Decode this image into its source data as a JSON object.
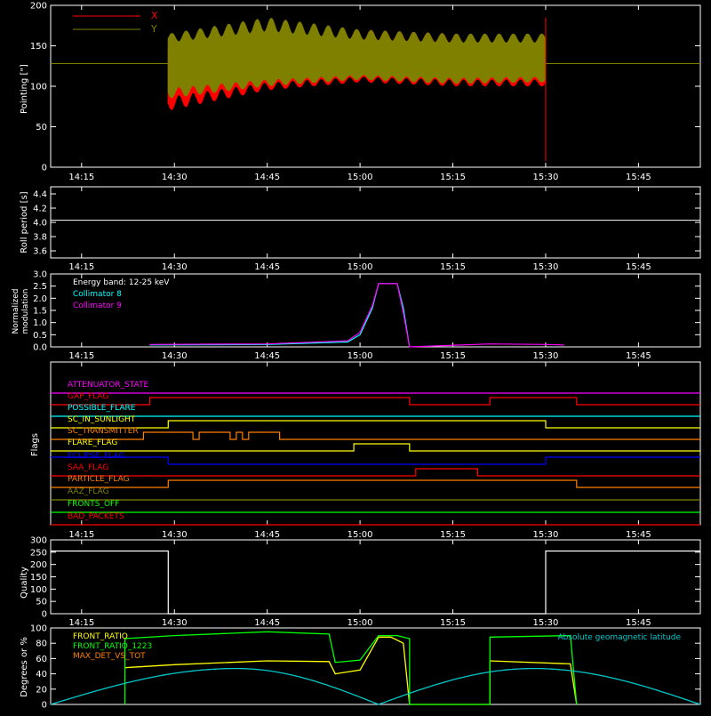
{
  "colors": {
    "background": "#000000",
    "frame": "#ffffff",
    "x_series": "#ff0000",
    "y_series": "#808000",
    "collimator8": "#00ffff",
    "collimator9": "#ff00ff",
    "front_ratio": "#ffff00",
    "front_ratio_1223": "#00ff00",
    "max_det_vs_tot": "#ff8000",
    "geomag": "#00c8c8"
  },
  "chart_data": [
    {
      "id": "pointing",
      "type": "line",
      "ylabel": "Pointing [\"]",
      "ylim": [
        0,
        200
      ],
      "yticks": [
        0,
        50,
        100,
        150,
        200
      ],
      "xlim": [
        "14:10",
        "15:55"
      ],
      "xticks": [
        "14:15",
        "14:30",
        "14:45",
        "15:00",
        "15:15",
        "15:30",
        "15:45"
      ],
      "legend": {
        "placement": "top-left",
        "entries": [
          "X",
          "Y"
        ]
      },
      "series": [
        {
          "name": "X",
          "color": "#ff0000",
          "baseline": 128,
          "start": "14:29",
          "end": "15:30",
          "min_env": [
            [
              "14:29",
              70
            ],
            [
              "14:45",
              95
            ],
            [
              "15:00",
              105
            ],
            [
              "15:15",
              100
            ],
            [
              "15:30",
              100
            ]
          ],
          "max_env": [
            [
              "14:29",
              150
            ],
            [
              "14:45",
              180
            ],
            [
              "15:00",
              170
            ],
            [
              "15:15",
              165
            ],
            [
              "15:30",
              160
            ]
          ]
        },
        {
          "name": "Y",
          "color": "#808000",
          "baseline": 128,
          "start": "14:29",
          "end": "15:30",
          "min_env": [
            [
              "14:29",
              85
            ],
            [
              "14:45",
              100
            ],
            [
              "15:00",
              108
            ],
            [
              "15:15",
              103
            ],
            [
              "15:30",
              105
            ]
          ],
          "max_env": [
            [
              "14:29",
              165
            ],
            [
              "14:45",
              185
            ],
            [
              "15:00",
              170
            ],
            [
              "15:15",
              165
            ],
            [
              "15:30",
              165
            ]
          ]
        }
      ]
    },
    {
      "id": "roll",
      "type": "line",
      "ylabel": "Roll period [s]",
      "ylim": [
        3.5,
        4.5
      ],
      "yticks": [
        3.6,
        3.8,
        4.0,
        4.2,
        4.4
      ],
      "xticks": [
        "14:15",
        "14:30",
        "14:45",
        "15:00",
        "15:15",
        "15:30",
        "15:45"
      ],
      "series": [
        {
          "name": "",
          "constant": 4.03
        }
      ]
    },
    {
      "id": "modulation",
      "type": "line",
      "ylabel_line1": "Normalized",
      "ylabel_line2": "modulation",
      "ylim": [
        0,
        3.0
      ],
      "yticks": [
        0.0,
        0.5,
        1.0,
        1.5,
        2.0,
        2.5,
        3.0
      ],
      "xticks": [
        "14:15",
        "14:30",
        "14:45",
        "15:00",
        "15:15",
        "15:30",
        "15:45"
      ],
      "legend": {
        "placement": "top-left",
        "entries": [
          "Energy band: 12-25 keV",
          "Collimator 8",
          "Collimator 9"
        ]
      },
      "series": [
        {
          "name": "Collimator 8",
          "color": "#00ffff",
          "points": [
            [
              "14:26",
              0.08
            ],
            [
              "14:45",
              0.1
            ],
            [
              "14:58",
              0.2
            ],
            [
              "15:00",
              0.5
            ],
            [
              "15:02",
              1.6
            ],
            [
              "15:03",
              2.6
            ],
            [
              "15:06",
              2.6
            ],
            [
              "15:07",
              1.6
            ],
            [
              "15:08",
              0.0
            ]
          ]
        },
        {
          "name": "Collimator 9",
          "color": "#ff00ff",
          "points": [
            [
              "14:26",
              0.1
            ],
            [
              "14:45",
              0.12
            ],
            [
              "14:58",
              0.25
            ],
            [
              "15:00",
              0.6
            ],
            [
              "15:02",
              1.7
            ],
            [
              "15:03",
              2.6
            ],
            [
              "15:06",
              2.6
            ],
            [
              "15:07",
              1.4
            ],
            [
              "15:08",
              0.0
            ],
            [
              "15:21",
              0.12
            ],
            [
              "15:30",
              0.1
            ],
            [
              "15:33",
              0.08
            ]
          ]
        }
      ]
    },
    {
      "id": "flags",
      "type": "step",
      "ylabel": "Flags",
      "xticks": [
        "14:15",
        "14:30",
        "14:45",
        "15:00",
        "15:15",
        "15:30",
        "15:45"
      ],
      "flags": [
        {
          "name": "ATTENUATOR_STATE",
          "color": "#ff00ff",
          "on": []
        },
        {
          "name": "GAP_FLAG",
          "color": "#ff0000",
          "on": [
            [
              "14:26",
              "15:08"
            ],
            [
              "15:21",
              "15:35"
            ]
          ]
        },
        {
          "name": "POSSIBLE_FLARE",
          "color": "#00ffff",
          "on": []
        },
        {
          "name": "SC_IN_SUNLIGHT",
          "color": "#ffff00",
          "on": [
            [
              "14:29",
              "15:30"
            ]
          ]
        },
        {
          "name": "SC_TRANSMITTER",
          "color": "#ff8000",
          "on": [
            [
              "14:25",
              "14:33"
            ],
            [
              "14:34",
              "14:39"
            ],
            [
              "14:40",
              "14:41"
            ],
            [
              "14:42",
              "14:47"
            ]
          ]
        },
        {
          "name": "FLARE_FLAG",
          "color": "#ffff00",
          "on": [
            [
              "14:59",
              "15:08"
            ]
          ]
        },
        {
          "name": "ECLIPSE_FLAG",
          "color": "#0000ff",
          "inverted": true,
          "on": [
            [
              "14:29",
              "15:30"
            ]
          ]
        },
        {
          "name": "SAA_FLAG",
          "color": "#ff0000",
          "on": [
            [
              "15:09",
              "15:19"
            ]
          ]
        },
        {
          "name": "PARTICLE_FLAG",
          "color": "#ff8000",
          "on": [
            [
              "14:29",
              "15:35"
            ]
          ]
        },
        {
          "name": "AAZ_FLAG",
          "color": "#808000",
          "on": []
        },
        {
          "name": "FRONTS_OFF",
          "color": "#00ff00",
          "on": []
        },
        {
          "name": "BAD_PACKETS",
          "color": "#ff0000",
          "on": []
        }
      ]
    },
    {
      "id": "quality",
      "type": "line",
      "ylabel": "Quality",
      "ylim": [
        0,
        300
      ],
      "yticks": [
        0,
        50,
        100,
        150,
        200,
        250,
        300
      ],
      "xticks": [
        "14:15",
        "14:30",
        "14:45",
        "15:00",
        "15:15",
        "15:30",
        "15:45"
      ],
      "series": [
        {
          "name": "",
          "points": [
            [
              "14:10",
              255
            ],
            [
              "14:29",
              255
            ],
            [
              "14:29",
              0
            ],
            [
              "15:30",
              0
            ],
            [
              "15:30",
              255
            ],
            [
              "15:55",
              255
            ]
          ]
        }
      ]
    },
    {
      "id": "ratios",
      "type": "line",
      "ylabel": "Degrees or %",
      "ylim": [
        0,
        100
      ],
      "yticks": [
        0,
        20,
        40,
        60,
        80,
        100
      ],
      "legend": {
        "placement": "top-left",
        "entries": [
          "FRONT_RATIO",
          "FRONT_RATIO_1223",
          "MAX_DET_VS_TOT"
        ],
        "right_entry": "Absolute geomagnetic latitude"
      },
      "series": [
        {
          "name": "FRONT_RATIO",
          "color": "#ffff00",
          "points": [
            [
              "14:22",
              48
            ],
            [
              "14:30",
              52
            ],
            [
              "14:45",
              57
            ],
            [
              "14:55",
              56
            ],
            [
              "14:56",
              40
            ],
            [
              "15:00",
              45
            ],
            [
              "15:03",
              88
            ],
            [
              "15:05",
              88
            ],
            [
              "15:07",
              80
            ],
            [
              "15:08",
              0
            ],
            [
              "15:21",
              0
            ],
            [
              "15:21",
              57
            ],
            [
              "15:34",
              53
            ],
            [
              "15:35",
              0
            ]
          ]
        },
        {
          "name": "FRONT_RATIO_1223",
          "color": "#00ff00",
          "points": [
            [
              "14:22",
              0
            ],
            [
              "14:22",
              86
            ],
            [
              "14:30",
              90
            ],
            [
              "14:45",
              95
            ],
            [
              "14:55",
              92
            ],
            [
              "14:56",
              55
            ],
            [
              "15:00",
              58
            ],
            [
              "15:03",
              90
            ],
            [
              "15:06",
              90
            ],
            [
              "15:08",
              86
            ],
            [
              "15:08",
              0
            ],
            [
              "15:21",
              0
            ],
            [
              "15:21",
              88
            ],
            [
              "15:34",
              90
            ],
            [
              "15:35",
              0
            ]
          ]
        },
        {
          "name": "Absolute geomagnetic latitude",
          "color": "#00c8c8",
          "points": [
            [
              "14:10",
              0
            ],
            [
              "14:40",
              47
            ],
            [
              "15:03",
              0
            ],
            [
              "15:28",
              47
            ],
            [
              "15:55",
              0
            ]
          ]
        }
      ]
    }
  ]
}
